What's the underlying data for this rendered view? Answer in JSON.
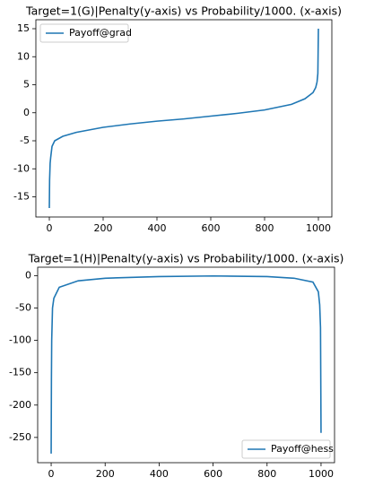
{
  "chart_data": [
    {
      "type": "line",
      "title": "Target=1(G)|Penalty(y-axis) vs Probability/1000. (x-axis)",
      "x": [
        0,
        1,
        3,
        5,
        10,
        20,
        50,
        100,
        200,
        300,
        400,
        500,
        600,
        700,
        800,
        900,
        950,
        980,
        990,
        995,
        998,
        1000
      ],
      "series": [
        {
          "name": "Payoff@grad",
          "color": "#1f77b4",
          "values": [
            -17,
            -12,
            -9,
            -8,
            -6,
            -5,
            -4.2,
            -3.5,
            -2.6,
            -2,
            -1.5,
            -1.1,
            -0.6,
            -0.1,
            0.5,
            1.5,
            2.5,
            3.6,
            4.5,
            5.5,
            7,
            15
          ]
        }
      ],
      "xlim": [
        -50,
        1050
      ],
      "ylim": [
        -18.6,
        16.6
      ],
      "xticks": [
        0,
        200,
        400,
        600,
        800,
        1000
      ],
      "yticks": [
        -15,
        -10,
        -5,
        0,
        5,
        10,
        15
      ],
      "legend": "upper-left"
    },
    {
      "type": "line",
      "title": "Target=1(H)|Penalty(y-axis) vs Probability/1000. (x-axis)",
      "x": [
        0,
        1,
        2,
        5,
        10,
        30,
        100,
        200,
        400,
        600,
        800,
        900,
        970,
        990,
        995,
        998,
        1000
      ],
      "series": [
        {
          "name": "Payoff@hess",
          "color": "#1f77b4",
          "values": [
            -275,
            -160,
            -100,
            -50,
            -35,
            -18,
            -8,
            -4,
            -1.5,
            -0.5,
            -1.5,
            -4,
            -10,
            -25,
            -45,
            -80,
            -243
          ]
        }
      ],
      "xlim": [
        -50,
        1050
      ],
      "ylim": [
        -289,
        13
      ],
      "xticks": [
        0,
        200,
        400,
        600,
        800,
        1000
      ],
      "yticks": [
        -250,
        -200,
        -150,
        -100,
        -50,
        0
      ],
      "legend": "lower-right"
    }
  ]
}
